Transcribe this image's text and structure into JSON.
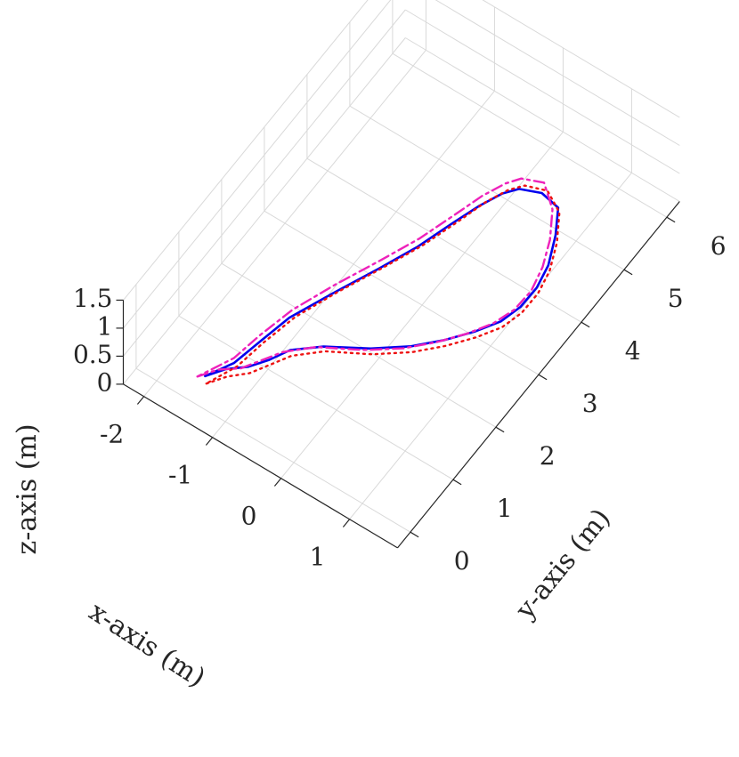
{
  "chart_data": {
    "type": "line",
    "view": "3d-trajectory",
    "xlabel": "x-axis (m)",
    "ylabel": "y-axis (m)",
    "zlabel": "z-axis (m)",
    "xlim": [
      -2.3,
      1.7
    ],
    "ylim": [
      -0.3,
      6.3
    ],
    "zlim": [
      0,
      1.5
    ],
    "x_ticks": [
      -2,
      -1,
      0,
      1
    ],
    "x_tick_labels": [
      "-2",
      "-1",
      "0",
      "1"
    ],
    "y_ticks": [
      0,
      1,
      2,
      3,
      4,
      5,
      6
    ],
    "y_tick_labels": [
      "0",
      "1",
      "2",
      "3",
      "4",
      "5",
      "6"
    ],
    "z_ticks": [
      0,
      0.5,
      1,
      1.5
    ],
    "z_tick_labels": [
      "0",
      "0.5",
      "1",
      "1.5"
    ],
    "grid": true,
    "legend": "none",
    "series": [
      {
        "color": "#0000ee",
        "style": "solid",
        "x": [
          -1.45,
          -1.3,
          -1.1,
          -0.95,
          -0.8,
          -0.5,
          0.0,
          0.4,
          0.7,
          0.95,
          1.15,
          1.25,
          1.3,
          1.28,
          1.2,
          1.05,
          0.75,
          0.45,
          0.3,
          0.15,
          0.0,
          -0.2,
          -0.45,
          -0.75,
          -1.0,
          -1.15,
          -1.25,
          -1.45
        ],
        "y": [
          0.25,
          0.5,
          0.7,
          0.95,
          1.2,
          1.5,
          1.8,
          2.1,
          2.4,
          2.7,
          3.0,
          3.3,
          3.6,
          3.9,
          4.2,
          4.5,
          4.6,
          4.55,
          4.4,
          4.1,
          3.7,
          3.2,
          2.7,
          2.1,
          1.5,
          1.0,
          0.6,
          0.25
        ],
        "z": [
          0.25,
          0.25,
          0.25,
          0.25,
          0.3,
          0.3,
          0.35,
          0.4,
          0.45,
          0.5,
          0.55,
          0.6,
          0.7,
          0.8,
          1.0,
          1.1,
          1.05,
          0.95,
          0.9,
          0.85,
          0.8,
          0.7,
          0.6,
          0.5,
          0.45,
          0.35,
          0.3,
          0.25
        ]
      },
      {
        "color": "#ee1111",
        "style": "dotted",
        "x": [
          -1.4,
          -1.25,
          -1.05,
          -0.9,
          -0.75,
          -0.45,
          0.05,
          0.45,
          0.75,
          1.0,
          1.2,
          1.3,
          1.35,
          1.33,
          1.25,
          1.1,
          0.8,
          0.5,
          0.35,
          0.2,
          0.05,
          -0.15,
          -0.4,
          -0.7,
          -0.95,
          -1.1,
          -1.2,
          -1.4
        ],
        "y": [
          0.2,
          0.45,
          0.65,
          0.9,
          1.15,
          1.45,
          1.75,
          2.05,
          2.35,
          2.65,
          2.95,
          3.25,
          3.55,
          3.85,
          4.15,
          4.45,
          4.65,
          4.6,
          4.45,
          4.15,
          3.75,
          3.25,
          2.75,
          2.15,
          1.55,
          1.05,
          0.6,
          0.2
        ],
        "z": [
          0.2,
          0.2,
          0.22,
          0.25,
          0.28,
          0.3,
          0.33,
          0.38,
          0.43,
          0.48,
          0.53,
          0.58,
          0.68,
          0.78,
          0.95,
          1.1,
          1.08,
          1.0,
          0.95,
          0.9,
          0.82,
          0.72,
          0.62,
          0.52,
          0.45,
          0.35,
          0.28,
          0.2
        ]
      },
      {
        "color": "#ee22bb",
        "style": "dashdot",
        "x": [
          -1.5,
          -1.35,
          -1.15,
          -1.0,
          -0.85,
          -0.55,
          -0.05,
          0.35,
          0.65,
          0.9,
          1.1,
          1.22,
          1.28,
          1.26,
          1.18,
          1.03,
          0.72,
          0.42,
          0.28,
          0.13,
          -0.02,
          -0.22,
          -0.47,
          -0.77,
          -1.02,
          -1.18,
          -1.28,
          -1.5
        ],
        "y": [
          0.15,
          0.4,
          0.6,
          0.85,
          1.1,
          1.4,
          1.7,
          2.0,
          2.3,
          2.6,
          2.9,
          3.2,
          3.5,
          3.8,
          4.1,
          4.4,
          4.7,
          4.65,
          4.5,
          4.2,
          3.8,
          3.3,
          2.8,
          2.2,
          1.6,
          1.1,
          0.65,
          0.15
        ],
        "z": [
          0.3,
          0.3,
          0.28,
          0.3,
          0.32,
          0.35,
          0.38,
          0.42,
          0.47,
          0.52,
          0.57,
          0.62,
          0.72,
          0.85,
          1.0,
          1.15,
          1.12,
          1.02,
          0.97,
          0.92,
          0.85,
          0.75,
          0.65,
          0.55,
          0.48,
          0.38,
          0.32,
          0.3
        ]
      }
    ]
  }
}
